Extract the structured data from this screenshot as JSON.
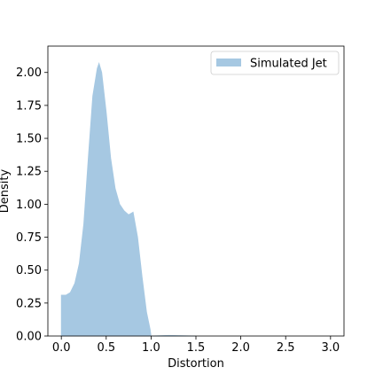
{
  "chart_data": {
    "type": "area",
    "title": "",
    "xlabel": "Distortion",
    "ylabel": "Density",
    "xlim": [
      -0.15,
      3.15
    ],
    "ylim": [
      0,
      2.2
    ],
    "xticks": [
      "0.0",
      "0.5",
      "1.0",
      "1.5",
      "2.0",
      "2.5",
      "3.0"
    ],
    "yticks": [
      "0.00",
      "0.25",
      "0.50",
      "0.75",
      "1.00",
      "1.25",
      "1.50",
      "1.75",
      "2.00"
    ],
    "grid": false,
    "legend_position": "top-right",
    "series": [
      {
        "name": "Simulated Jet",
        "color": "#a6c8e2",
        "x": [
          0.0,
          0.05,
          0.1,
          0.15,
          0.2,
          0.25,
          0.3,
          0.35,
          0.4,
          0.42,
          0.45,
          0.5,
          0.55,
          0.6,
          0.65,
          0.7,
          0.75,
          0.8,
          0.85,
          0.9,
          0.95,
          0.99,
          1.0,
          1.2,
          1.5
        ],
        "values": [
          0.31,
          0.31,
          0.33,
          0.4,
          0.55,
          0.85,
          1.35,
          1.82,
          2.03,
          2.07,
          2.0,
          1.7,
          1.35,
          1.12,
          1.0,
          0.95,
          0.92,
          0.94,
          0.75,
          0.45,
          0.18,
          0.05,
          0.0,
          0.005,
          0.0
        ]
      }
    ]
  }
}
